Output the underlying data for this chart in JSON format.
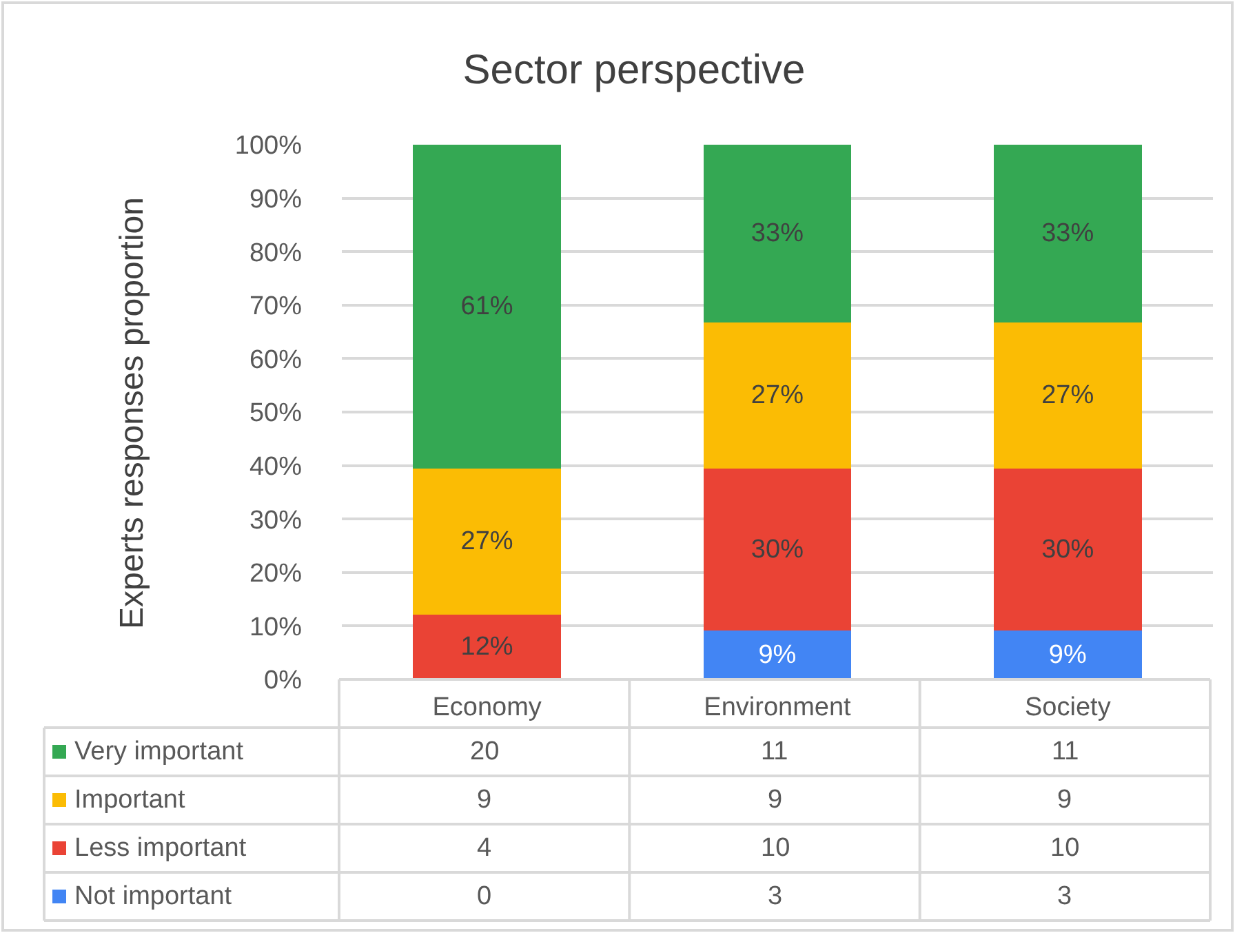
{
  "chart_data": {
    "type": "bar",
    "title": "Sector perspective",
    "ylabel": "Experts responses proportion",
    "stacked": true,
    "categories": [
      "Economy",
      "Environment",
      "Society"
    ],
    "series": [
      {
        "name": "Not important",
        "color": "#4285f4",
        "values": [
          0,
          9.1,
          9.1
        ],
        "value_labels": [
          null,
          "9%",
          "9%"
        ]
      },
      {
        "name": "Less important",
        "color": "#ea4335",
        "values": [
          12.1,
          30.3,
          30.3
        ],
        "value_labels": [
          "12%",
          "30%",
          "30%"
        ]
      },
      {
        "name": "Important",
        "color": "#fbbc04",
        "values": [
          27.3,
          27.3,
          27.3
        ],
        "value_labels": [
          "27%",
          "27%",
          "27%"
        ]
      },
      {
        "name": "Very important",
        "color": "#34a853",
        "values": [
          60.6,
          33.3,
          33.3
        ],
        "value_labels": [
          "61%",
          "33%",
          "33%"
        ]
      }
    ],
    "annotations": [
      "20",
      "11",
      "11",
      "9",
      "9",
      "9",
      "4",
      "10",
      "10",
      "0",
      "3",
      "3"
    ],
    "ylim": [
      0,
      100
    ],
    "yticks": [
      {
        "value": 0,
        "label": "0%"
      },
      {
        "value": 10,
        "label": "10%"
      },
      {
        "value": 20,
        "label": "20%"
      },
      {
        "value": 30,
        "label": "30%"
      },
      {
        "value": 40,
        "label": "40%"
      },
      {
        "value": 50,
        "label": "50%"
      },
      {
        "value": 60,
        "label": "60%"
      },
      {
        "value": 70,
        "label": "70%"
      },
      {
        "value": 80,
        "label": "80%"
      },
      {
        "value": 90,
        "label": "90%"
      },
      {
        "value": 100,
        "label": "100%"
      }
    ],
    "grid": "y",
    "legend": "bottom left"
  }
}
